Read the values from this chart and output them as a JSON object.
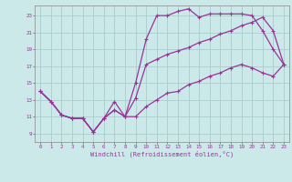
{
  "xlabel": "Windchill (Refroidissement éolien,°C)",
  "background_color": "#cce9e9",
  "grid_color": "#aacccc",
  "line_color": "#993399",
  "xmin": -0.5,
  "xmax": 23.5,
  "ymin": 8.0,
  "ymax": 24.2,
  "yticks": [
    9,
    11,
    13,
    15,
    17,
    19,
    21,
    23
  ],
  "xticks": [
    0,
    1,
    2,
    3,
    4,
    5,
    6,
    7,
    8,
    9,
    10,
    11,
    12,
    13,
    14,
    15,
    16,
    17,
    18,
    19,
    20,
    21,
    22,
    23
  ],
  "line1_x": [
    0,
    1,
    2,
    3,
    4,
    5,
    6,
    7,
    8,
    9,
    10,
    11,
    12,
    13,
    14,
    15,
    16,
    17,
    18,
    19,
    20,
    21,
    22,
    23
  ],
  "line1_y": [
    14.0,
    12.8,
    11.2,
    10.8,
    10.8,
    9.2,
    10.8,
    12.8,
    11.0,
    15.0,
    20.2,
    23.0,
    23.0,
    23.5,
    23.8,
    22.8,
    23.2,
    23.2,
    23.2,
    23.2,
    23.0,
    21.2,
    19.0,
    17.2
  ],
  "line2_x": [
    0,
    1,
    2,
    3,
    4,
    5,
    6,
    7,
    8,
    9,
    10,
    11,
    12,
    13,
    14,
    15,
    16,
    17,
    18,
    19,
    20,
    21,
    22,
    23
  ],
  "line2_y": [
    14.0,
    12.8,
    11.2,
    10.8,
    10.8,
    9.2,
    10.8,
    11.8,
    11.0,
    13.2,
    17.2,
    17.8,
    18.4,
    18.8,
    19.2,
    19.8,
    20.2,
    20.8,
    21.2,
    21.8,
    22.2,
    22.8,
    21.2,
    17.2
  ],
  "line3_x": [
    0,
    1,
    2,
    3,
    4,
    5,
    6,
    7,
    8,
    9,
    10,
    11,
    12,
    13,
    14,
    15,
    16,
    17,
    18,
    19,
    20,
    21,
    22,
    23
  ],
  "line3_y": [
    14.0,
    12.8,
    11.2,
    10.8,
    10.8,
    9.2,
    10.8,
    11.8,
    11.0,
    11.0,
    12.2,
    13.0,
    13.8,
    14.0,
    14.8,
    15.2,
    15.8,
    16.2,
    16.8,
    17.2,
    16.8,
    16.2,
    15.8,
    17.2
  ]
}
